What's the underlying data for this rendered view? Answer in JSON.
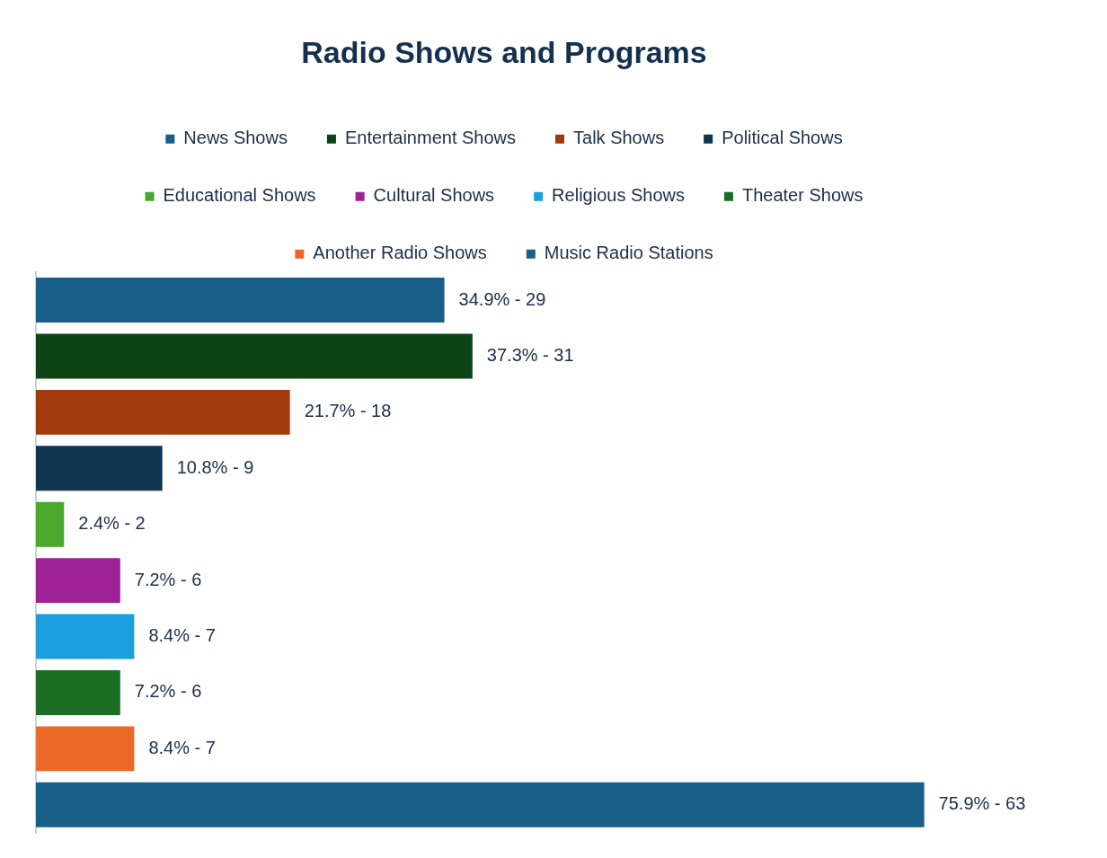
{
  "chart_data": {
    "type": "bar",
    "title": "Radio Shows and Programs",
    "orientation": "horizontal",
    "categories": [
      null,
      null,
      null,
      null,
      null,
      null,
      null,
      null,
      null,
      null
    ],
    "series": [
      {
        "name": "News Shows",
        "color": "#175f86",
        "values": [
          34.9,
          null,
          null,
          null,
          null,
          null,
          null,
          null,
          null,
          null
        ],
        "value_labels": [
          "34.9% - 29",
          null,
          null,
          null,
          null,
          null,
          null,
          null,
          null,
          null
        ]
      },
      {
        "name": "Entertainment Shows",
        "color": "#0c4416",
        "values": [
          null,
          37.3,
          null,
          null,
          null,
          null,
          null,
          null,
          null,
          null
        ],
        "value_labels": [
          null,
          "37.3% - 31",
          null,
          null,
          null,
          null,
          null,
          null,
          null,
          null
        ]
      },
      {
        "name": "Talk Shows",
        "color": "#a23a0c",
        "values": [
          null,
          null,
          21.7,
          null,
          null,
          null,
          null,
          null,
          null,
          null
        ],
        "value_labels": [
          null,
          null,
          "21.7% - 18",
          null,
          null,
          null,
          null,
          null,
          null,
          null
        ]
      },
      {
        "name": "Political Shows",
        "color": "#0f3550",
        "values": [
          null,
          null,
          null,
          10.8,
          null,
          null,
          null,
          null,
          null,
          null
        ],
        "value_labels": [
          null,
          null,
          null,
          "10.8% - 9",
          null,
          null,
          null,
          null,
          null,
          null
        ]
      },
      {
        "name": "Educational Shows",
        "color": "#4aa82c",
        "values": [
          null,
          null,
          null,
          null,
          2.4,
          null,
          null,
          null,
          null,
          null
        ],
        "value_labels": [
          null,
          null,
          null,
          null,
          "2.4% - 2",
          null,
          null,
          null,
          null,
          null
        ]
      },
      {
        "name": "Cultural Shows",
        "color": "#9e2196",
        "values": [
          null,
          null,
          null,
          null,
          null,
          7.2,
          null,
          null,
          null,
          null
        ],
        "value_labels": [
          null,
          null,
          null,
          null,
          null,
          "7.2% - 6",
          null,
          null,
          null,
          null
        ]
      },
      {
        "name": "Religious Shows",
        "color": "#1a9fdc",
        "values": [
          null,
          null,
          null,
          null,
          null,
          null,
          8.4,
          null,
          null,
          null
        ],
        "value_labels": [
          null,
          null,
          null,
          null,
          null,
          null,
          "8.4% - 7",
          null,
          null,
          null
        ]
      },
      {
        "name": "Theater Shows",
        "color": "#1b6e24",
        "values": [
          null,
          null,
          null,
          null,
          null,
          null,
          null,
          7.2,
          null,
          null
        ],
        "value_labels": [
          null,
          null,
          null,
          null,
          null,
          null,
          null,
          "7.2% - 6",
          null,
          null
        ]
      },
      {
        "name": "Another Radio Shows",
        "color": "#ec6826",
        "values": [
          null,
          null,
          null,
          null,
          null,
          null,
          null,
          null,
          8.4,
          null
        ],
        "value_labels": [
          null,
          null,
          null,
          null,
          null,
          null,
          null,
          null,
          "8.4% - 7",
          null
        ]
      },
      {
        "name": "Music Radio Stations",
        "color": "#175f86",
        "values": [
          null,
          null,
          null,
          null,
          null,
          null,
          null,
          null,
          null,
          75.9
        ],
        "value_labels": [
          null,
          null,
          null,
          null,
          null,
          null,
          null,
          null,
          null,
          "75.9% - 63"
        ]
      }
    ],
    "stacked": true,
    "legend": "top",
    "tick_labels": false,
    "grid": false
  }
}
